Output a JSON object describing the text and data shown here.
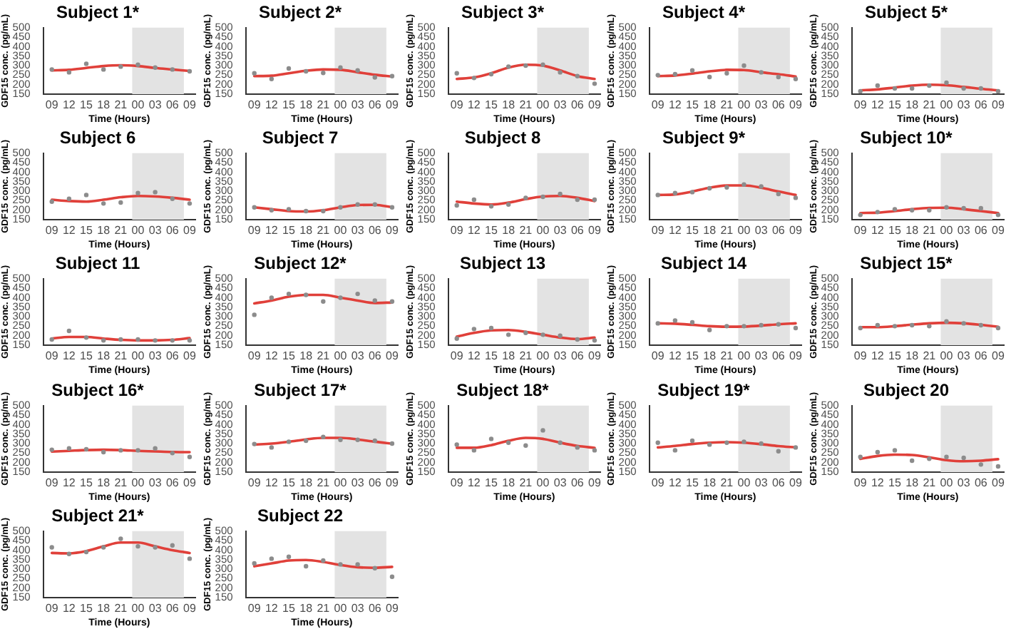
{
  "chart_data": [
    {
      "type": "scatter",
      "title": "Subject 1*",
      "xlabel": "Time (Hours)",
      "ylabel": "GDF15 conc. (pg/mL)",
      "x": [
        9,
        12,
        15,
        18,
        21,
        24,
        27,
        30,
        33
      ],
      "xlim": [
        7.5,
        34
      ],
      "xticks": [
        {
          "value": 9,
          "label": "09"
        },
        12,
        15,
        18,
        21,
        {
          "value": 24,
          "label": "00"
        },
        {
          "value": 27,
          "label": "03"
        },
        {
          "value": 30,
          "label": "06"
        },
        {
          "value": 33,
          "label": "09"
        }
      ],
      "ylim": [
        150,
        500
      ],
      "yticks": [
        150,
        200,
        250,
        300,
        350,
        400,
        450,
        500
      ],
      "bands": [
        {
          "axis": "x",
          "from": 23,
          "to": 32,
          "color": "#e3e3e3"
        }
      ],
      "grid": false,
      "legend": false,
      "series": [
        {
          "type": "scatter",
          "marker": "circle",
          "color": "#8c8c8c",
          "values": [
            280,
            265,
            310,
            280,
            295,
            305,
            290,
            280,
            270
          ]
        },
        {
          "type": "line",
          "marker": "none",
          "color": "#e0403a",
          "values": [
            275,
            278,
            288,
            298,
            302,
            298,
            288,
            280,
            272
          ]
        }
      ]
    },
    {
      "type": "scatter",
      "title": "Subject 2*",
      "xlabel": "Time (Hours)",
      "ylabel": "GDF15 conc. (pg/mL)",
      "x": [
        9,
        12,
        15,
        18,
        21,
        24,
        27,
        30,
        33
      ],
      "xlim": [
        7.5,
        34
      ],
      "xticks": [
        {
          "value": 9,
          "label": "09"
        },
        12,
        15,
        18,
        21,
        {
          "value": 24,
          "label": "00"
        },
        {
          "value": 27,
          "label": "03"
        },
        {
          "value": 30,
          "label": "06"
        },
        {
          "value": 33,
          "label": "09"
        }
      ],
      "ylim": [
        150,
        500
      ],
      "yticks": [
        150,
        200,
        250,
        300,
        350,
        400,
        450,
        500
      ],
      "bands": [
        {
          "axis": "x",
          "from": 23,
          "to": 32,
          "color": "#e3e3e3"
        }
      ],
      "grid": false,
      "legend": false,
      "series": [
        {
          "type": "scatter",
          "marker": "circle",
          "color": "#8c8c8c",
          "values": [
            260,
            230,
            285,
            270,
            262,
            290,
            275,
            238,
            245
          ]
        },
        {
          "type": "line",
          "marker": "none",
          "color": "#e0403a",
          "values": [
            245,
            247,
            260,
            273,
            280,
            278,
            265,
            252,
            243
          ]
        }
      ]
    },
    {
      "type": "scatter",
      "title": "Subject 3*",
      "xlabel": "Time (Hours)",
      "ylabel": "GDF15 conc. (pg/mL)",
      "x": [
        9,
        12,
        15,
        18,
        21,
        24,
        27,
        30,
        33
      ],
      "xlim": [
        7.5,
        34
      ],
      "xticks": [
        {
          "value": 9,
          "label": "09"
        },
        12,
        15,
        18,
        21,
        {
          "value": 24,
          "label": "00"
        },
        {
          "value": 27,
          "label": "03"
        },
        {
          "value": 30,
          "label": "06"
        },
        {
          "value": 33,
          "label": "09"
        }
      ],
      "ylim": [
        150,
        500
      ],
      "yticks": [
        150,
        200,
        250,
        300,
        350,
        400,
        450,
        500
      ],
      "bands": [
        {
          "axis": "x",
          "from": 23,
          "to": 32,
          "color": "#e3e3e3"
        }
      ],
      "grid": false,
      "legend": false,
      "series": [
        {
          "type": "scatter",
          "marker": "circle",
          "color": "#8c8c8c",
          "values": [
            260,
            235,
            255,
            295,
            300,
            305,
            265,
            245,
            205
          ]
        },
        {
          "type": "line",
          "marker": "none",
          "color": "#e0403a",
          "values": [
            230,
            238,
            260,
            290,
            305,
            300,
            275,
            245,
            230
          ]
        }
      ]
    },
    {
      "type": "scatter",
      "title": "Subject 4*",
      "xlabel": "Time (Hours)",
      "ylabel": "GDF15 conc. (pg/mL)",
      "x": [
        9,
        12,
        15,
        18,
        21,
        24,
        27,
        30,
        33
      ],
      "xlim": [
        7.5,
        34
      ],
      "xticks": [
        {
          "value": 9,
          "label": "09"
        },
        12,
        15,
        18,
        21,
        {
          "value": 24,
          "label": "00"
        },
        {
          "value": 27,
          "label": "03"
        },
        {
          "value": 30,
          "label": "06"
        },
        {
          "value": 33,
          "label": "09"
        }
      ],
      "ylim": [
        150,
        500
      ],
      "yticks": [
        150,
        200,
        250,
        300,
        350,
        400,
        450,
        500
      ],
      "bands": [
        {
          "axis": "x",
          "from": 23,
          "to": 32,
          "color": "#e3e3e3"
        }
      ],
      "grid": false,
      "legend": false,
      "series": [
        {
          "type": "scatter",
          "marker": "circle",
          "color": "#8c8c8c",
          "values": [
            250,
            255,
            275,
            240,
            260,
            300,
            265,
            240,
            230
          ]
        },
        {
          "type": "line",
          "marker": "none",
          "color": "#e0403a",
          "values": [
            245,
            248,
            258,
            270,
            278,
            277,
            265,
            255,
            243
          ]
        }
      ]
    },
    {
      "type": "scatter",
      "title": "Subject 5*",
      "xlabel": "Time (Hours)",
      "ylabel": "GDF15 conc. (pg/mL)",
      "x": [
        9,
        12,
        15,
        18,
        21,
        24,
        27,
        30,
        33
      ],
      "xlim": [
        7.5,
        34
      ],
      "xticks": [
        {
          "value": 9,
          "label": "09"
        },
        12,
        15,
        18,
        21,
        {
          "value": 24,
          "label": "00"
        },
        {
          "value": 27,
          "label": "03"
        },
        {
          "value": 30,
          "label": "06"
        },
        {
          "value": 33,
          "label": "09"
        }
      ],
      "ylim": [
        150,
        500
      ],
      "yticks": [
        150,
        200,
        250,
        300,
        350,
        400,
        450,
        500
      ],
      "bands": [
        {
          "axis": "x",
          "from": 23,
          "to": 32,
          "color": "#e3e3e3"
        }
      ],
      "grid": false,
      "legend": false,
      "series": [
        {
          "type": "scatter",
          "marker": "circle",
          "color": "#8c8c8c",
          "values": [
            165,
            195,
            180,
            180,
            195,
            210,
            180,
            180,
            165
          ]
        },
        {
          "type": "line",
          "marker": "none",
          "color": "#e0403a",
          "values": [
            170,
            175,
            185,
            195,
            200,
            197,
            188,
            178,
            170
          ]
        }
      ]
    },
    {
      "type": "scatter",
      "title": "Subject 6",
      "xlabel": "Time (Hours)",
      "ylabel": "GDF15 conc. (pg/mL)",
      "x": [
        9,
        12,
        15,
        18,
        21,
        24,
        27,
        30,
        33
      ],
      "xlim": [
        7.5,
        34
      ],
      "xticks": [
        {
          "value": 9,
          "label": "09"
        },
        12,
        15,
        18,
        21,
        {
          "value": 24,
          "label": "00"
        },
        {
          "value": 27,
          "label": "03"
        },
        {
          "value": 30,
          "label": "06"
        },
        {
          "value": 33,
          "label": "09"
        }
      ],
      "ylim": [
        150,
        500
      ],
      "yticks": [
        150,
        200,
        250,
        300,
        350,
        400,
        450,
        500
      ],
      "bands": [
        {
          "axis": "x",
          "from": 23,
          "to": 32,
          "color": "#e3e3e3"
        }
      ],
      "grid": false,
      "legend": false,
      "series": [
        {
          "type": "scatter",
          "marker": "circle",
          "color": "#8c8c8c",
          "values": [
            245,
            260,
            280,
            235,
            240,
            290,
            295,
            260,
            235
          ]
        },
        {
          "type": "line",
          "marker": "none",
          "color": "#e0403a",
          "values": [
            255,
            248,
            245,
            255,
            268,
            275,
            272,
            265,
            255
          ]
        }
      ]
    },
    {
      "type": "scatter",
      "title": "Subject 7",
      "xlabel": "Time (Hours)",
      "ylabel": "GDF15 conc. (pg/mL)",
      "x": [
        9,
        12,
        15,
        18,
        21,
        24,
        27,
        30,
        33
      ],
      "xlim": [
        7.5,
        34
      ],
      "xticks": [
        {
          "value": 9,
          "label": "09"
        },
        12,
        15,
        18,
        21,
        {
          "value": 24,
          "label": "00"
        },
        {
          "value": 27,
          "label": "03"
        },
        {
          "value": 30,
          "label": "06"
        },
        {
          "value": 33,
          "label": "09"
        }
      ],
      "ylim": [
        150,
        500
      ],
      "yticks": [
        150,
        200,
        250,
        300,
        350,
        400,
        450,
        500
      ],
      "bands": [
        {
          "axis": "x",
          "from": 23,
          "to": 32,
          "color": "#e3e3e3"
        }
      ],
      "grid": false,
      "legend": false,
      "series": [
        {
          "type": "scatter",
          "marker": "circle",
          "color": "#8c8c8c",
          "values": [
            215,
            200,
            205,
            195,
            195,
            215,
            230,
            230,
            215
          ]
        },
        {
          "type": "line",
          "marker": "none",
          "color": "#e0403a",
          "values": [
            215,
            205,
            195,
            193,
            200,
            215,
            227,
            228,
            215
          ]
        }
      ]
    },
    {
      "type": "scatter",
      "title": "Subject 8",
      "xlabel": "Time (Hours)",
      "ylabel": "GDF15 conc. (pg/mL)",
      "x": [
        9,
        12,
        15,
        18,
        21,
        24,
        27,
        30,
        33
      ],
      "xlim": [
        7.5,
        34
      ],
      "xticks": [
        {
          "value": 9,
          "label": "09"
        },
        12,
        15,
        18,
        21,
        {
          "value": 24,
          "label": "00"
        },
        {
          "value": 27,
          "label": "03"
        },
        {
          "value": 30,
          "label": "06"
        },
        {
          "value": 33,
          "label": "09"
        }
      ],
      "ylim": [
        150,
        500
      ],
      "yticks": [
        150,
        200,
        250,
        300,
        350,
        400,
        450,
        500
      ],
      "bands": [
        {
          "axis": "x",
          "from": 23,
          "to": 32,
          "color": "#e3e3e3"
        }
      ],
      "grid": false,
      "legend": false,
      "series": [
        {
          "type": "scatter",
          "marker": "circle",
          "color": "#8c8c8c",
          "values": [
            225,
            255,
            220,
            230,
            265,
            270,
            285,
            255,
            255
          ]
        },
        {
          "type": "line",
          "marker": "none",
          "color": "#e0403a",
          "values": [
            245,
            235,
            230,
            240,
            258,
            272,
            275,
            265,
            248
          ]
        }
      ]
    },
    {
      "type": "scatter",
      "title": "Subject 9*",
      "xlabel": "Time (Hours)",
      "ylabel": "GDF15 conc. (pg/mL)",
      "x": [
        9,
        12,
        15,
        18,
        21,
        24,
        27,
        30,
        33
      ],
      "xlim": [
        7.5,
        34
      ],
      "xticks": [
        {
          "value": 9,
          "label": "09"
        },
        12,
        15,
        18,
        21,
        {
          "value": 24,
          "label": "00"
        },
        {
          "value": 27,
          "label": "03"
        },
        {
          "value": 30,
          "label": "06"
        },
        {
          "value": 33,
          "label": "09"
        }
      ],
      "ylim": [
        150,
        500
      ],
      "yticks": [
        150,
        200,
        250,
        300,
        350,
        400,
        450,
        500
      ],
      "bands": [
        {
          "axis": "x",
          "from": 23,
          "to": 32,
          "color": "#e3e3e3"
        }
      ],
      "grid": false,
      "legend": false,
      "series": [
        {
          "type": "scatter",
          "marker": "circle",
          "color": "#8c8c8c",
          "values": [
            280,
            290,
            295,
            315,
            320,
            335,
            325,
            285,
            265
          ]
        },
        {
          "type": "line",
          "marker": "none",
          "color": "#e0403a",
          "values": [
            280,
            283,
            298,
            318,
            330,
            330,
            318,
            298,
            280
          ]
        }
      ]
    },
    {
      "type": "scatter",
      "title": "Subject 10*",
      "xlabel": "Time (Hours)",
      "ylabel": "GDF15 conc. (pg/mL)",
      "x": [
        9,
        12,
        15,
        18,
        21,
        24,
        27,
        30,
        33
      ],
      "xlim": [
        7.5,
        34
      ],
      "xticks": [
        {
          "value": 9,
          "label": "09"
        },
        12,
        15,
        18,
        21,
        {
          "value": 24,
          "label": "00"
        },
        {
          "value": 27,
          "label": "03"
        },
        {
          "value": 30,
          "label": "06"
        },
        {
          "value": 33,
          "label": "09"
        }
      ],
      "ylim": [
        150,
        500
      ],
      "yticks": [
        150,
        200,
        250,
        300,
        350,
        400,
        450,
        500
      ],
      "bands": [
        {
          "axis": "x",
          "from": 23,
          "to": 32,
          "color": "#e3e3e3"
        }
      ],
      "grid": false,
      "legend": false,
      "series": [
        {
          "type": "scatter",
          "marker": "circle",
          "color": "#8c8c8c",
          "values": [
            175,
            190,
            205,
            200,
            200,
            215,
            210,
            210,
            175
          ]
        },
        {
          "type": "line",
          "marker": "none",
          "color": "#e0403a",
          "values": [
            185,
            187,
            195,
            205,
            212,
            213,
            205,
            195,
            185
          ]
        }
      ]
    },
    {
      "type": "scatter",
      "title": "Subject 11",
      "xlabel": "Time (Hours)",
      "ylabel": "GDF15 conc. (pg/mL)",
      "x": [
        9,
        12,
        15,
        18,
        21,
        24,
        27,
        30,
        33
      ],
      "xlim": [
        7.5,
        34
      ],
      "xticks": [
        {
          "value": 9,
          "label": "09"
        },
        12,
        15,
        18,
        21,
        {
          "value": 24,
          "label": "00"
        },
        {
          "value": 27,
          "label": "03"
        },
        {
          "value": 30,
          "label": "06"
        },
        {
          "value": 33,
          "label": "09"
        }
      ],
      "ylim": [
        150,
        500
      ],
      "yticks": [
        150,
        200,
        250,
        300,
        350,
        400,
        450,
        500
      ],
      "grid": false,
      "legend": false,
      "series": [
        {
          "type": "scatter",
          "marker": "circle",
          "color": "#8c8c8c",
          "values": [
            180,
            225,
            190,
            175,
            180,
            180,
            175,
            175,
            175
          ]
        },
        {
          "type": "line",
          "marker": "none",
          "color": "#e0403a",
          "values": [
            185,
            193,
            193,
            185,
            178,
            175,
            175,
            178,
            187
          ]
        }
      ]
    },
    {
      "type": "scatter",
      "title": "Subject 12*",
      "xlabel": "Time (Hours)",
      "ylabel": "GDF15 conc. (pg/mL)",
      "x": [
        9,
        12,
        15,
        18,
        21,
        24,
        27,
        30,
        33
      ],
      "xlim": [
        7.5,
        34
      ],
      "xticks": [
        {
          "value": 9,
          "label": "09"
        },
        12,
        15,
        18,
        21,
        {
          "value": 24,
          "label": "00"
        },
        {
          "value": 27,
          "label": "03"
        },
        {
          "value": 30,
          "label": "06"
        },
        {
          "value": 33,
          "label": "09"
        }
      ],
      "ylim": [
        150,
        500
      ],
      "yticks": [
        150,
        200,
        250,
        300,
        350,
        400,
        450,
        500
      ],
      "bands": [
        {
          "axis": "x",
          "from": 23,
          "to": 32,
          "color": "#e3e3e3"
        }
      ],
      "grid": false,
      "legend": false,
      "series": [
        {
          "type": "scatter",
          "marker": "circle",
          "color": "#8c8c8c",
          "values": [
            310,
            400,
            420,
            415,
            380,
            400,
            420,
            385,
            380
          ]
        },
        {
          "type": "line",
          "marker": "none",
          "color": "#e0403a",
          "values": [
            370,
            385,
            405,
            415,
            415,
            400,
            385,
            372,
            375
          ]
        }
      ]
    },
    {
      "type": "scatter",
      "title": "Subject 13",
      "xlabel": "Time (Hours)",
      "ylabel": "GDF15 conc. (pg/mL)",
      "x": [
        9,
        12,
        15,
        18,
        21,
        24,
        27,
        30,
        33
      ],
      "xlim": [
        7.5,
        34
      ],
      "xticks": [
        {
          "value": 9,
          "label": "09"
        },
        12,
        15,
        18,
        21,
        {
          "value": 24,
          "label": "00"
        },
        {
          "value": 27,
          "label": "03"
        },
        {
          "value": 30,
          "label": "06"
        },
        {
          "value": 33,
          "label": "09"
        }
      ],
      "ylim": [
        150,
        500
      ],
      "yticks": [
        150,
        200,
        250,
        300,
        350,
        400,
        450,
        500
      ],
      "bands": [
        {
          "axis": "x",
          "from": 23,
          "to": 32,
          "color": "#e3e3e3"
        }
      ],
      "grid": false,
      "legend": false,
      "series": [
        {
          "type": "scatter",
          "marker": "circle",
          "color": "#8c8c8c",
          "values": [
            185,
            235,
            240,
            205,
            215,
            205,
            200,
            180,
            175
          ]
        },
        {
          "type": "line",
          "marker": "none",
          "color": "#e0403a",
          "values": [
            195,
            215,
            228,
            230,
            220,
            205,
            190,
            182,
            190
          ]
        }
      ]
    },
    {
      "type": "scatter",
      "title": "Subject 14",
      "xlabel": "Time (Hours)",
      "ylabel": "GDF15 conc. (pg/mL)",
      "x": [
        9,
        12,
        15,
        18,
        21,
        24,
        27,
        30,
        33
      ],
      "xlim": [
        7.5,
        34
      ],
      "xticks": [
        {
          "value": 9,
          "label": "09"
        },
        12,
        15,
        18,
        21,
        {
          "value": 24,
          "label": "00"
        },
        {
          "value": 27,
          "label": "03"
        },
        {
          "value": 30,
          "label": "06"
        },
        {
          "value": 33,
          "label": "09"
        }
      ],
      "ylim": [
        150,
        500
      ],
      "yticks": [
        150,
        200,
        250,
        300,
        350,
        400,
        450,
        500
      ],
      "bands": [
        {
          "axis": "x",
          "from": 23,
          "to": 32,
          "color": "#e3e3e3"
        }
      ],
      "grid": false,
      "legend": false,
      "series": [
        {
          "type": "scatter",
          "marker": "circle",
          "color": "#8c8c8c",
          "values": [
            265,
            280,
            270,
            230,
            250,
            250,
            255,
            260,
            240
          ]
        },
        {
          "type": "line",
          "marker": "none",
          "color": "#e0403a",
          "values": [
            265,
            263,
            257,
            250,
            247,
            248,
            253,
            260,
            265
          ]
        }
      ]
    },
    {
      "type": "scatter",
      "title": "Subject 15*",
      "xlabel": "Time (Hours)",
      "ylabel": "GDF15 conc. (pg/mL)",
      "x": [
        9,
        12,
        15,
        18,
        21,
        24,
        27,
        30,
        33
      ],
      "xlim": [
        7.5,
        34
      ],
      "xticks": [
        {
          "value": 9,
          "label": "09"
        },
        12,
        15,
        18,
        21,
        {
          "value": 24,
          "label": "00"
        },
        {
          "value": 27,
          "label": "03"
        },
        {
          "value": 30,
          "label": "06"
        },
        {
          "value": 33,
          "label": "09"
        }
      ],
      "ylim": [
        150,
        500
      ],
      "yticks": [
        150,
        200,
        250,
        300,
        350,
        400,
        450,
        500
      ],
      "bands": [
        {
          "axis": "x",
          "from": 23,
          "to": 32,
          "color": "#e3e3e3"
        }
      ],
      "grid": false,
      "legend": false,
      "series": [
        {
          "type": "scatter",
          "marker": "circle",
          "color": "#8c8c8c",
          "values": [
            240,
            255,
            250,
            255,
            250,
            275,
            265,
            255,
            240
          ]
        },
        {
          "type": "line",
          "marker": "none",
          "color": "#e0403a",
          "values": [
            245,
            245,
            250,
            258,
            265,
            268,
            265,
            257,
            247
          ]
        }
      ]
    },
    {
      "type": "scatter",
      "title": "Subject 16*",
      "xlabel": "Time (Hours)",
      "ylabel": "GDF15 conc. (pg/mL)",
      "x": [
        9,
        12,
        15,
        18,
        21,
        24,
        27,
        30,
        33
      ],
      "xlim": [
        7.5,
        34
      ],
      "xticks": [
        {
          "value": 9,
          "label": "09"
        },
        12,
        15,
        18,
        21,
        {
          "value": 24,
          "label": "00"
        },
        {
          "value": 27,
          "label": "03"
        },
        {
          "value": 30,
          "label": "06"
        },
        {
          "value": 33,
          "label": "09"
        }
      ],
      "ylim": [
        150,
        500
      ],
      "yticks": [
        150,
        200,
        250,
        300,
        350,
        400,
        450,
        500
      ],
      "bands": [
        {
          "axis": "x",
          "from": 23,
          "to": 32,
          "color": "#e3e3e3"
        }
      ],
      "grid": false,
      "legend": false,
      "series": [
        {
          "type": "scatter",
          "marker": "circle",
          "color": "#8c8c8c",
          "values": [
            268,
            275,
            270,
            255,
            265,
            265,
            275,
            250,
            230
          ]
        },
        {
          "type": "line",
          "marker": "none",
          "color": "#e0403a",
          "values": [
            258,
            262,
            266,
            268,
            266,
            262,
            259,
            256,
            255
          ]
        }
      ]
    },
    {
      "type": "scatter",
      "title": "Subject 17*",
      "xlabel": "Time (Hours)",
      "ylabel": "GDF15 conc. (pg/mL)",
      "x": [
        9,
        12,
        15,
        18,
        21,
        24,
        27,
        30,
        33
      ],
      "xlim": [
        7.5,
        34
      ],
      "xticks": [
        {
          "value": 9,
          "label": "09"
        },
        12,
        15,
        18,
        21,
        {
          "value": 24,
          "label": "00"
        },
        {
          "value": 27,
          "label": "03"
        },
        {
          "value": 30,
          "label": "06"
        },
        {
          "value": 33,
          "label": "09"
        }
      ],
      "ylim": [
        150,
        500
      ],
      "yticks": [
        150,
        200,
        250,
        300,
        350,
        400,
        450,
        500
      ],
      "bands": [
        {
          "axis": "x",
          "from": 23,
          "to": 32,
          "color": "#e3e3e3"
        }
      ],
      "grid": false,
      "legend": false,
      "series": [
        {
          "type": "scatter",
          "marker": "circle",
          "color": "#8c8c8c",
          "values": [
            298,
            280,
            310,
            315,
            335,
            320,
            320,
            315,
            300
          ]
        },
        {
          "type": "line",
          "marker": "none",
          "color": "#e0403a",
          "values": [
            295,
            300,
            310,
            322,
            330,
            330,
            322,
            310,
            300
          ]
        }
      ]
    },
    {
      "type": "scatter",
      "title": "Subject 18*",
      "xlabel": "Time (Hours)",
      "ylabel": "GDF15 conc. (pg/mL)",
      "x": [
        9,
        12,
        15,
        18,
        21,
        24,
        27,
        30,
        33
      ],
      "xlim": [
        7.5,
        34
      ],
      "xticks": [
        {
          "value": 9,
          "label": "09"
        },
        12,
        15,
        18,
        21,
        {
          "value": 24,
          "label": "00"
        },
        {
          "value": 27,
          "label": "03"
        },
        {
          "value": 30,
          "label": "06"
        },
        {
          "value": 33,
          "label": "09"
        }
      ],
      "ylim": [
        150,
        500
      ],
      "yticks": [
        150,
        200,
        250,
        300,
        350,
        400,
        450,
        500
      ],
      "bands": [
        {
          "axis": "x",
          "from": 23,
          "to": 32,
          "color": "#e3e3e3"
        }
      ],
      "grid": false,
      "legend": false,
      "series": [
        {
          "type": "scatter",
          "marker": "circle",
          "color": "#8c8c8c",
          "values": [
            295,
            265,
            325,
            305,
            290,
            370,
            305,
            280,
            265
          ]
        },
        {
          "type": "line",
          "marker": "none",
          "color": "#e0403a",
          "values": [
            278,
            278,
            292,
            315,
            330,
            325,
            305,
            288,
            278
          ]
        }
      ]
    },
    {
      "type": "scatter",
      "title": "Subject 19*",
      "xlabel": "Time (Hours)",
      "ylabel": "GDF15 conc. (pg/mL)",
      "x": [
        9,
        12,
        15,
        18,
        21,
        24,
        27,
        30,
        33
      ],
      "xlim": [
        7.5,
        34
      ],
      "xticks": [
        {
          "value": 9,
          "label": "09"
        },
        12,
        15,
        18,
        21,
        {
          "value": 24,
          "label": "00"
        },
        {
          "value": 27,
          "label": "03"
        },
        {
          "value": 30,
          "label": "06"
        },
        {
          "value": 33,
          "label": "09"
        }
      ],
      "ylim": [
        150,
        500
      ],
      "yticks": [
        150,
        200,
        250,
        300,
        350,
        400,
        450,
        500
      ],
      "bands": [
        {
          "axis": "x",
          "from": 23,
          "to": 32,
          "color": "#e3e3e3"
        }
      ],
      "grid": false,
      "legend": false,
      "series": [
        {
          "type": "scatter",
          "marker": "circle",
          "color": "#8c8c8c",
          "values": [
            305,
            265,
            315,
            295,
            305,
            310,
            300,
            260,
            280
          ]
        },
        {
          "type": "line",
          "marker": "none",
          "color": "#e0403a",
          "values": [
            280,
            288,
            298,
            305,
            308,
            305,
            297,
            287,
            280
          ]
        }
      ]
    },
    {
      "type": "scatter",
      "title": "Subject 20",
      "xlabel": "Time (Hours)",
      "ylabel": "GDF15 conc. (pg/mL)",
      "x": [
        9,
        12,
        15,
        18,
        21,
        24,
        27,
        30,
        33
      ],
      "xlim": [
        7.5,
        34
      ],
      "xticks": [
        {
          "value": 9,
          "label": "09"
        },
        12,
        15,
        18,
        21,
        {
          "value": 24,
          "label": "00"
        },
        {
          "value": 27,
          "label": "03"
        },
        {
          "value": 30,
          "label": "06"
        },
        {
          "value": 33,
          "label": "09"
        }
      ],
      "ylim": [
        150,
        500
      ],
      "yticks": [
        150,
        200,
        250,
        300,
        350,
        400,
        450,
        500
      ],
      "bands": [
        {
          "axis": "x",
          "from": 23,
          "to": 32,
          "color": "#e3e3e3"
        }
      ],
      "grid": false,
      "legend": false,
      "series": [
        {
          "type": "scatter",
          "marker": "circle",
          "color": "#8c8c8c",
          "values": [
            230,
            255,
            265,
            210,
            220,
            230,
            225,
            190,
            180
          ]
        },
        {
          "type": "line",
          "marker": "none",
          "color": "#e0403a",
          "values": [
            220,
            235,
            242,
            240,
            228,
            213,
            207,
            210,
            218
          ]
        }
      ]
    },
    {
      "type": "scatter",
      "title": "Subject 21*",
      "xlabel": "Time (Hours)",
      "ylabel": "GDF15 conc. (pg/mL)",
      "x": [
        9,
        12,
        15,
        18,
        21,
        24,
        27,
        30,
        33
      ],
      "xlim": [
        7.5,
        34
      ],
      "xticks": [
        {
          "value": 9,
          "label": "09"
        },
        12,
        15,
        18,
        21,
        {
          "value": 24,
          "label": "00"
        },
        {
          "value": 27,
          "label": "03"
        },
        {
          "value": 30,
          "label": "06"
        },
        {
          "value": 33,
          "label": "09"
        }
      ],
      "ylim": [
        150,
        500
      ],
      "yticks": [
        150,
        200,
        250,
        300,
        350,
        400,
        450,
        500
      ],
      "bands": [
        {
          "axis": "x",
          "from": 23,
          "to": 32,
          "color": "#e3e3e3"
        }
      ],
      "grid": false,
      "legend": false,
      "series": [
        {
          "type": "scatter",
          "marker": "circle",
          "color": "#8c8c8c",
          "values": [
            415,
            380,
            390,
            415,
            460,
            420,
            415,
            425,
            355
          ]
        },
        {
          "type": "line",
          "marker": "none",
          "color": "#e0403a",
          "values": [
            385,
            383,
            395,
            420,
            440,
            440,
            420,
            400,
            385
          ]
        }
      ]
    },
    {
      "type": "scatter",
      "title": "Subject 22",
      "xlabel": "Time (Hours)",
      "ylabel": "GDF15 conc. (pg/mL)",
      "x": [
        9,
        12,
        15,
        18,
        21,
        24,
        27,
        30,
        33
      ],
      "xlim": [
        7.5,
        34
      ],
      "xticks": [
        {
          "value": 9,
          "label": "09"
        },
        12,
        15,
        18,
        21,
        {
          "value": 24,
          "label": "00"
        },
        {
          "value": 27,
          "label": "03"
        },
        {
          "value": 30,
          "label": "06"
        },
        {
          "value": 33,
          "label": "09"
        }
      ],
      "ylim": [
        150,
        500
      ],
      "yticks": [
        150,
        200,
        250,
        300,
        350,
        400,
        450,
        500
      ],
      "bands": [
        {
          "axis": "x",
          "from": 23,
          "to": 32,
          "color": "#e3e3e3"
        }
      ],
      "grid": false,
      "legend": false,
      "series": [
        {
          "type": "scatter",
          "marker": "circle",
          "color": "#8c8c8c",
          "values": [
            330,
            355,
            365,
            315,
            345,
            325,
            325,
            305,
            260
          ]
        },
        {
          "type": "line",
          "marker": "none",
          "color": "#e0403a",
          "values": [
            315,
            330,
            345,
            348,
            338,
            322,
            310,
            307,
            312
          ]
        }
      ]
    }
  ]
}
